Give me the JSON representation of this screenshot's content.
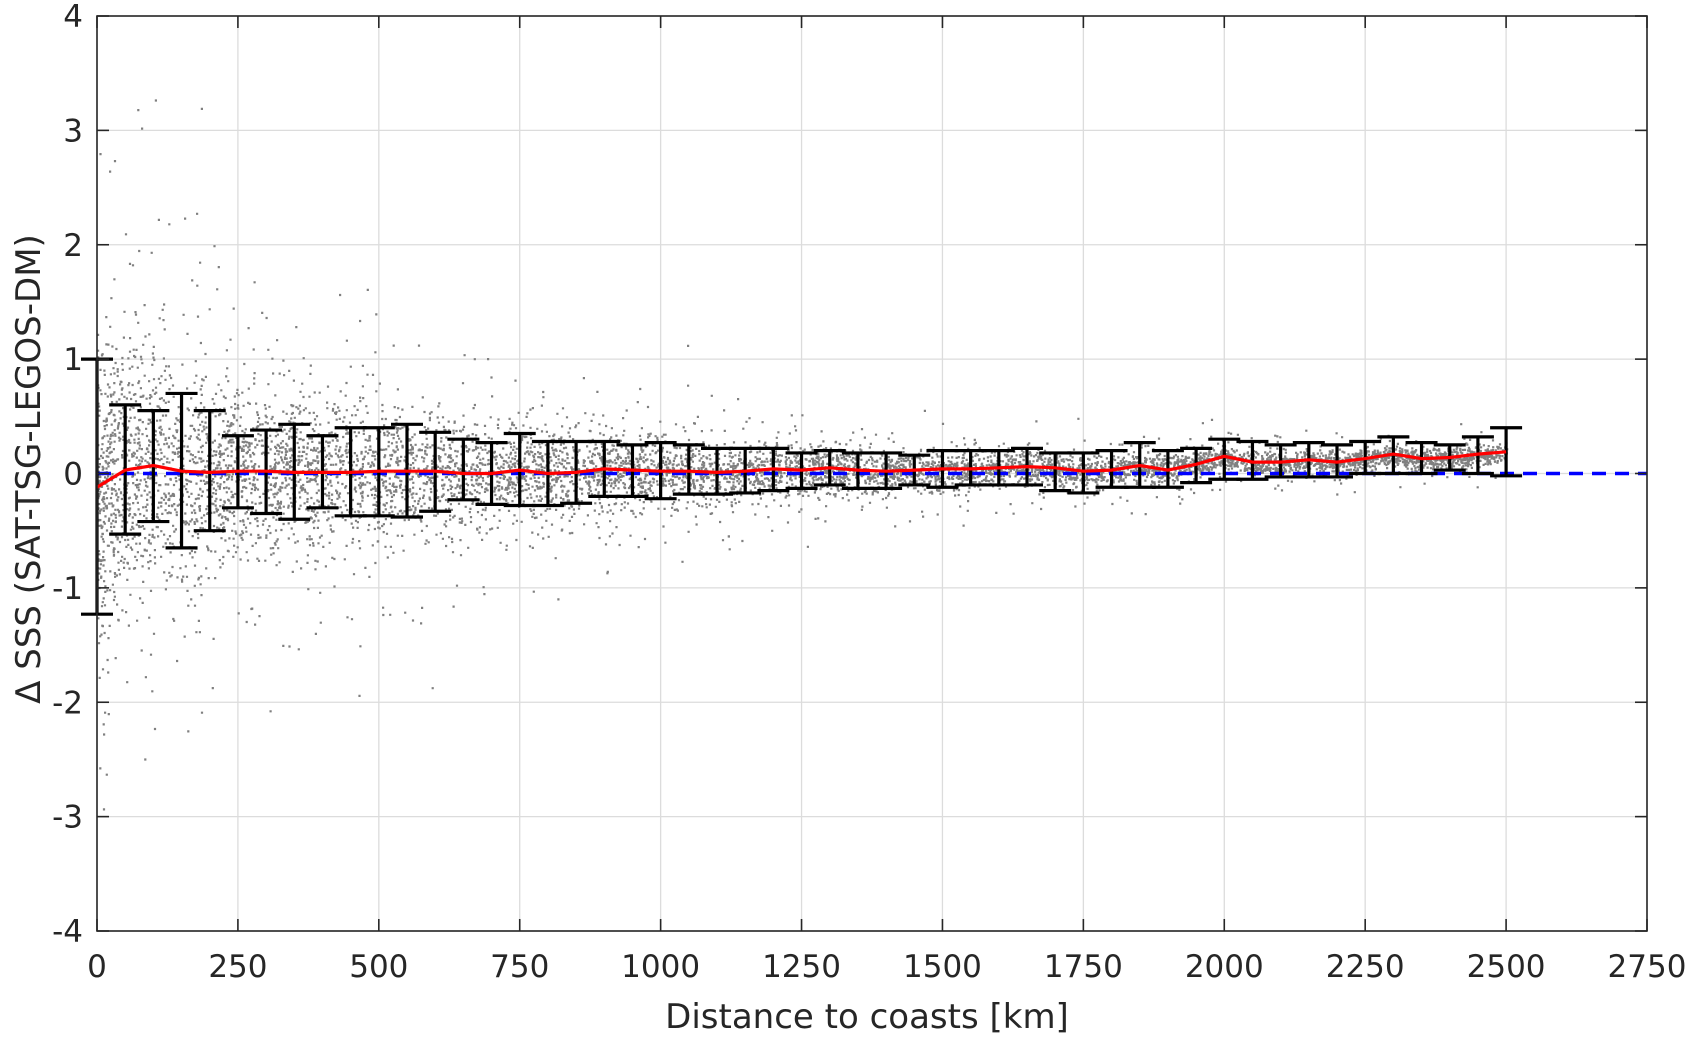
{
  "chart_data": {
    "type": "scatter",
    "xlabel": "Distance to coasts [km]",
    "ylabel": "Δ SSS (SAT-TSG-LEGOS-DM)",
    "xlim": [
      0,
      2750
    ],
    "ylim": [
      -4,
      4
    ],
    "xticks": [
      "0",
      "250",
      "500",
      "750",
      "1000",
      "1250",
      "1500",
      "1750",
      "2000",
      "2250",
      "2500",
      "2750"
    ],
    "yticks": [
      "-4",
      "-3",
      "-2",
      "-1",
      "0",
      "1",
      "2",
      "3",
      "4"
    ],
    "grid": true,
    "colors": {
      "scatter": "#808080",
      "mean_line": "#ff0000",
      "zero_line": "#0000ff",
      "error_bars": "#000000",
      "grid": "#dcdcdc",
      "axes": "#262626"
    },
    "zero_reference": {
      "y": 0,
      "style": "dashed"
    },
    "scatter_envelope": {
      "x": [
        0,
        100,
        200,
        300,
        400,
        500,
        600,
        700,
        800,
        900,
        1000,
        1200,
        1400,
        1600,
        1800,
        1900,
        2000,
        2100,
        2300,
        2450,
        2500
      ],
      "spread_std": [
        0.9,
        0.7,
        0.6,
        0.5,
        0.45,
        0.42,
        0.38,
        0.3,
        0.28,
        0.24,
        0.2,
        0.16,
        0.13,
        0.11,
        0.1,
        0.09,
        0.08,
        0.07,
        0.07,
        0.07,
        0.07
      ],
      "extent": [
        4.0,
        4.0,
        4.0,
        4.0,
        4.0,
        4.0,
        4.0,
        2.8,
        2.5,
        2.3,
        2.0,
        1.0,
        0.8,
        0.6,
        1.1,
        0.6,
        0.6,
        0.5,
        0.5,
        0.8,
        0.8
      ]
    },
    "series": [
      {
        "type": "line",
        "x": [
          0,
          50,
          100,
          150,
          200,
          250,
          300,
          350,
          400,
          450,
          500,
          550,
          600,
          650,
          700,
          750,
          800,
          850,
          900,
          950,
          1000,
          1050,
          1100,
          1150,
          1200,
          1250,
          1300,
          1350,
          1400,
          1450,
          1500,
          1550,
          1600,
          1650,
          1700,
          1750,
          1800,
          1850,
          1900,
          1950,
          2000,
          2050,
          2100,
          2150,
          2200,
          2250,
          2300,
          2350,
          2400,
          2450,
          2500
        ],
        "y": [
          -0.12,
          0.03,
          0.07,
          0.02,
          0.01,
          0.02,
          0.02,
          0.01,
          0.01,
          0.01,
          0.02,
          0.02,
          0.02,
          0.0,
          0.0,
          0.03,
          0.0,
          0.01,
          0.04,
          0.03,
          0.02,
          0.02,
          0.01,
          0.02,
          0.04,
          0.03,
          0.05,
          0.03,
          0.02,
          0.03,
          0.04,
          0.04,
          0.05,
          0.06,
          0.05,
          0.02,
          0.03,
          0.07,
          0.03,
          0.08,
          0.15,
          0.1,
          0.1,
          0.12,
          0.1,
          0.13,
          0.17,
          0.13,
          0.14,
          0.17,
          0.19
        ]
      },
      {
        "type": "errorbar",
        "x": [
          0,
          50,
          100,
          150,
          200,
          250,
          300,
          350,
          400,
          450,
          500,
          550,
          600,
          650,
          700,
          750,
          800,
          850,
          900,
          950,
          1000,
          1050,
          1100,
          1150,
          1200,
          1250,
          1300,
          1350,
          1400,
          1450,
          1500,
          1550,
          1600,
          1650,
          1700,
          1750,
          1800,
          1850,
          1900,
          1950,
          2000,
          2050,
          2100,
          2150,
          2200,
          2250,
          2300,
          2350,
          2400,
          2450,
          2500
        ],
        "upper": [
          1.0,
          0.6,
          0.55,
          0.7,
          0.55,
          0.33,
          0.38,
          0.43,
          0.33,
          0.4,
          0.4,
          0.43,
          0.36,
          0.3,
          0.27,
          0.35,
          0.28,
          0.28,
          0.28,
          0.25,
          0.27,
          0.25,
          0.22,
          0.22,
          0.22,
          0.18,
          0.2,
          0.18,
          0.18,
          0.16,
          0.2,
          0.2,
          0.2,
          0.22,
          0.18,
          0.18,
          0.2,
          0.27,
          0.2,
          0.22,
          0.3,
          0.28,
          0.25,
          0.27,
          0.25,
          0.28,
          0.32,
          0.27,
          0.25,
          0.32,
          0.4
        ],
        "lower": [
          -1.23,
          -0.53,
          -0.42,
          -0.65,
          -0.5,
          -0.3,
          -0.35,
          -0.4,
          -0.3,
          -0.37,
          -0.37,
          -0.38,
          -0.33,
          -0.23,
          -0.27,
          -0.28,
          -0.28,
          -0.26,
          -0.2,
          -0.2,
          -0.22,
          -0.18,
          -0.18,
          -0.17,
          -0.15,
          -0.13,
          -0.1,
          -0.13,
          -0.13,
          -0.1,
          -0.12,
          -0.1,
          -0.1,
          -0.1,
          -0.15,
          -0.17,
          -0.12,
          -0.12,
          -0.12,
          -0.08,
          -0.05,
          -0.05,
          -0.03,
          -0.03,
          -0.03,
          0.0,
          0.0,
          0.0,
          0.03,
          0.0,
          -0.02
        ]
      }
    ]
  }
}
